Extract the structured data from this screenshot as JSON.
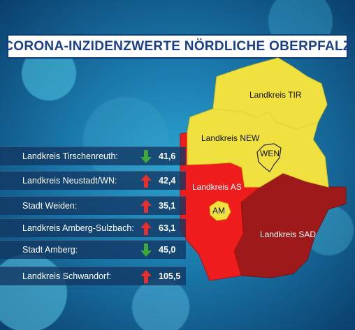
{
  "title": "CORONA-INZIDENZWERTE NÖRDLICHE OBERPFALZ",
  "colors": {
    "title_text": "#1a3f8c",
    "title_border": "#0f3b78",
    "low": "#f0e040",
    "medium": "#ee1c1c",
    "high": "#9e1a1a",
    "arrow_up": "#e82e2e",
    "arrow_down": "#3ea83a"
  },
  "regions": {
    "tir": "Landkreis TIR",
    "new": "Landkreis NEW",
    "wen": "WEN",
    "as": "Landkreis AS",
    "am": "AM",
    "sad": "Landkreis SAD"
  },
  "table": [
    {
      "label": "Landkreis Tirschenreuth:",
      "trend": "down",
      "icon": "arrow-down-icon",
      "value": "41,6"
    },
    {
      "label": "Landkreis Neustadt/WN:",
      "trend": "up",
      "icon": "arrow-up-icon",
      "value": "42,4"
    },
    {
      "label": "Stadt Weiden:",
      "trend": "up",
      "icon": "arrow-up-icon",
      "value": "35,1"
    },
    {
      "label": "Landkreis Amberg-Sulzbach:",
      "trend": "up",
      "icon": "arrow-up-icon",
      "value": "63,1"
    },
    {
      "label": "Stadt Amberg:",
      "trend": "down",
      "icon": "arrow-down-icon",
      "value": "45,0"
    },
    {
      "label": "Landkreis Schwandorf:",
      "trend": "up",
      "icon": "arrow-up-icon",
      "value": "105,5"
    }
  ]
}
